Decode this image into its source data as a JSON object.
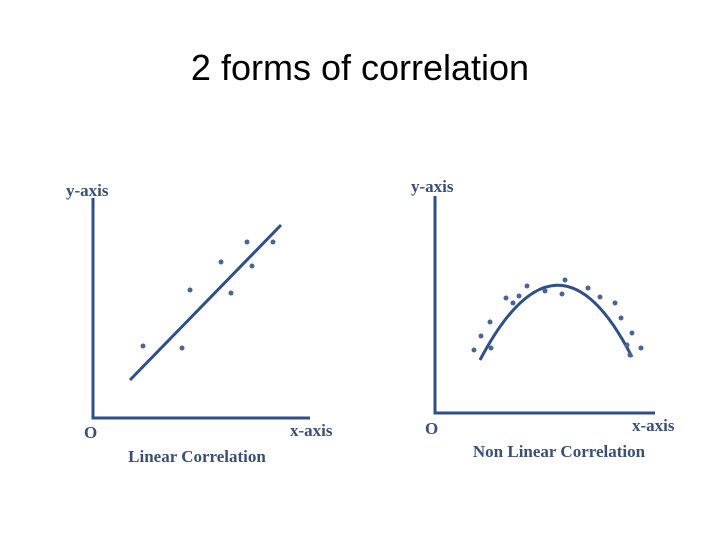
{
  "title": "2 forms of correlation",
  "panels": [
    {
      "y_axis_label": "y-axis",
      "x_axis_label": "x-axis",
      "origin_label": "O",
      "caption": "Linear Correlation"
    },
    {
      "y_axis_label": "y-axis",
      "x_axis_label": "x-axis",
      "origin_label": "O",
      "caption": "Non Linear Correlation"
    }
  ]
}
